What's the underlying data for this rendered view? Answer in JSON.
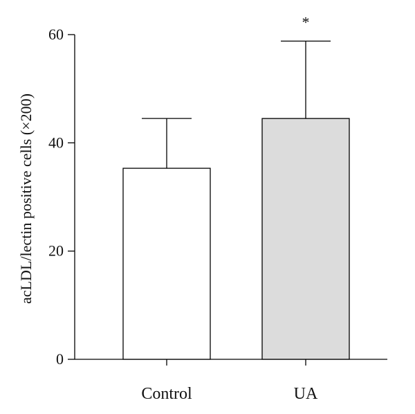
{
  "chart_data": {
    "type": "bar",
    "categories": [
      "Control",
      "UA"
    ],
    "values": [
      35.3,
      44.5
    ],
    "errors_upper": [
      9.2,
      14.3
    ],
    "bar_colors": [
      "#ffffff",
      "#dcdcdc"
    ],
    "annotations": [
      "",
      "*"
    ],
    "ylabel": "acLDL/lectin positive cells (×200)",
    "xlabel": "",
    "ylim": [
      0,
      60
    ],
    "yticks": [
      0,
      20,
      40,
      60
    ],
    "grid": false
  }
}
